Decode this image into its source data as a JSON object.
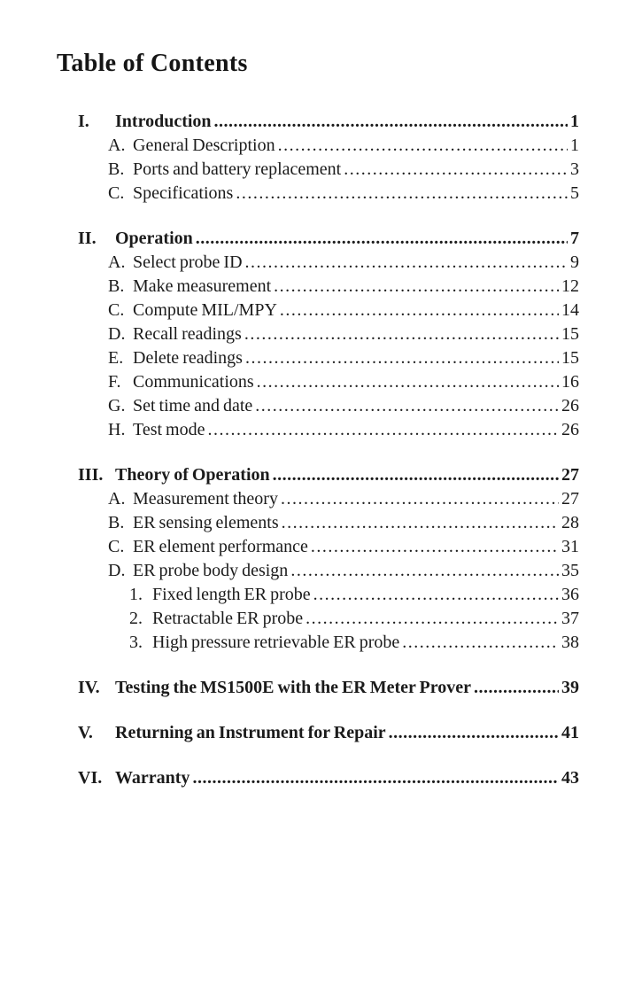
{
  "page": {
    "title": "Table of Contents"
  },
  "toc": {
    "sections": [
      {
        "label": "I.",
        "title": "Introduction",
        "page": "1",
        "items": [
          {
            "label": "A.",
            "title": "General Description",
            "page": "1"
          },
          {
            "label": "B.",
            "title": "Ports and battery replacement",
            "page": "3"
          },
          {
            "label": "C.",
            "title": "Specifications",
            "page": "5"
          }
        ]
      },
      {
        "label": "II.",
        "title": "Operation",
        "page": "7",
        "items": [
          {
            "label": "A.",
            "title": "Select probe ID",
            "page": "9"
          },
          {
            "label": "B.",
            "title": "Make measurement",
            "page": "12"
          },
          {
            "label": "C.",
            "title": "Compute MIL/MPY",
            "page": "14"
          },
          {
            "label": "D.",
            "title": "Recall readings",
            "page": "15"
          },
          {
            "label": "E.",
            "title": "Delete readings",
            "page": "15"
          },
          {
            "label": "F.",
            "title": "Communications",
            "page": "16"
          },
          {
            "label": "G.",
            "title": "Set time and date",
            "page": "26"
          },
          {
            "label": "H.",
            "title": "Test mode",
            "page": "26"
          }
        ]
      },
      {
        "label": "III.",
        "title": "Theory of Operation",
        "page": "27",
        "items": [
          {
            "label": "A.",
            "title": "Measurement theory",
            "page": "27"
          },
          {
            "label": "B.",
            "title": "ER sensing elements",
            "page": "28"
          },
          {
            "label": "C.",
            "title": "ER element performance",
            "page": "31"
          },
          {
            "label": "D.",
            "title": "ER probe body design",
            "page": "35",
            "subitems": [
              {
                "label": "1.",
                "title": "Fixed length ER probe",
                "page": "36"
              },
              {
                "label": "2.",
                "title": "Retractable ER probe",
                "page": "37"
              },
              {
                "label": "3.",
                "title": "High pressure retrievable ER probe",
                "page": "38"
              }
            ]
          }
        ]
      },
      {
        "label": "IV.",
        "title": "Testing the MS1500E with the ER Meter Prover",
        "page": "39"
      },
      {
        "label": "V.",
        "title": "Returning an Instrument for Repair",
        "page": "41"
      },
      {
        "label": "VI.",
        "title": "Warranty",
        "page": "43"
      }
    ]
  }
}
